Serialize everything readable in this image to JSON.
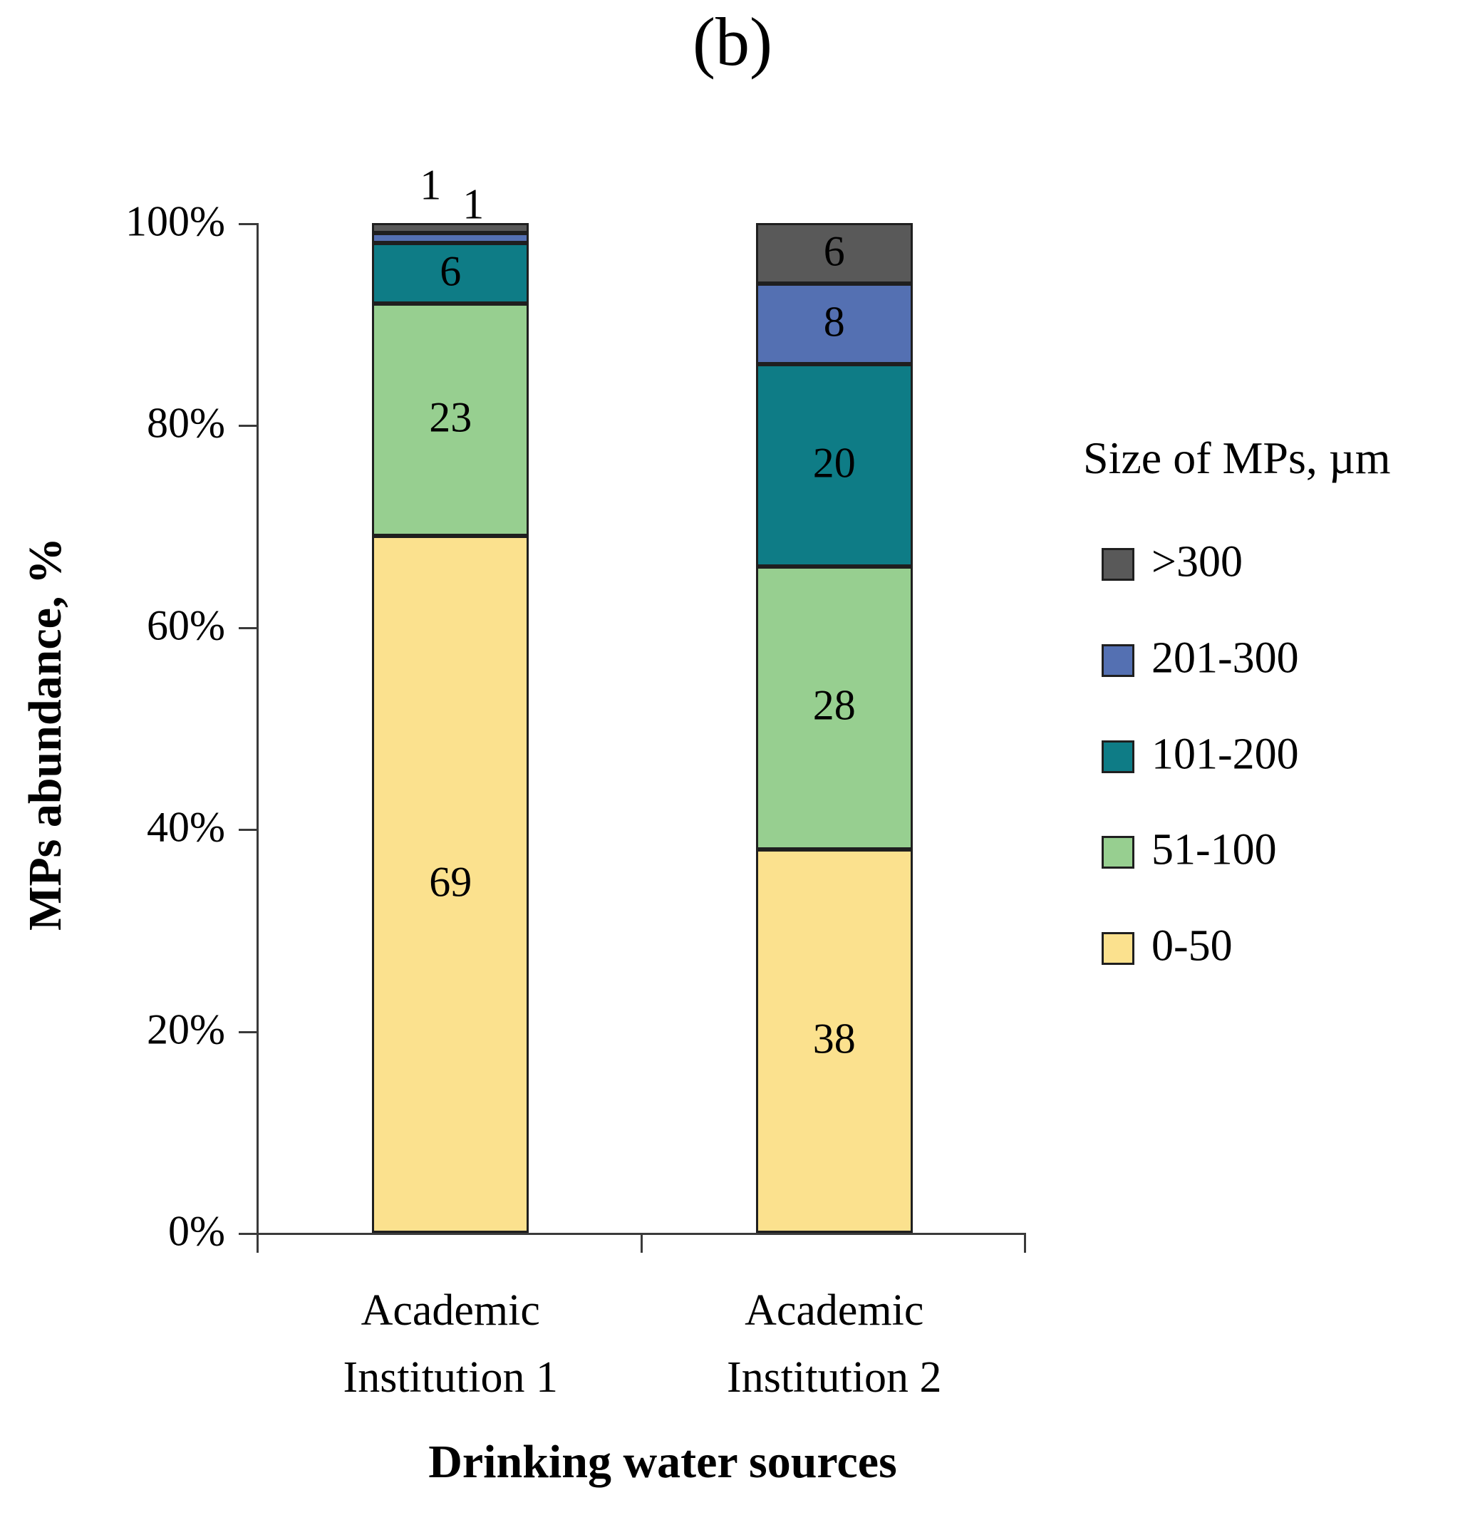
{
  "chart_data": {
    "type": "bar",
    "stacked": true,
    "units": "percent",
    "title": "(b)",
    "xlabel": "Drinking water sources",
    "ylabel": "MPs abundance, %",
    "ylim": [
      0,
      100
    ],
    "ytick_values": [
      0,
      20,
      40,
      60,
      80,
      100
    ],
    "yticklabels": [
      "0%",
      "20%",
      "40%",
      "60%",
      "80%",
      "100%"
    ],
    "categories": [
      "Academic Institution 1",
      "Academic Institution 2"
    ],
    "series": [
      {
        "name": "0-50",
        "color": "#FBE18E",
        "values": [
          69,
          38
        ]
      },
      {
        "name": "51-100",
        "color": "#97CF90",
        "values": [
          23,
          28
        ]
      },
      {
        "name": "101-200",
        "color": "#0E7C86",
        "values": [
          6,
          20
        ]
      },
      {
        "name": "201-300",
        "color": "#5470B2",
        "values": [
          1,
          8
        ]
      },
      {
        "name": ">300",
        "color": "#595959",
        "values": [
          1,
          6
        ]
      }
    ],
    "legend": {
      "title": "Size of MPs, µm",
      "position": "right",
      "entries_top_to_bottom": [
        ">300",
        "201-300",
        "101-200",
        "51-100",
        "0-50"
      ]
    },
    "grid": false,
    "bar_value_labels_shown": true
  },
  "colors": {
    "axis": "#3A3A3A",
    "segment_border": "#1F1F1F",
    "text": "#000000",
    "background": "#FFFFFF"
  }
}
